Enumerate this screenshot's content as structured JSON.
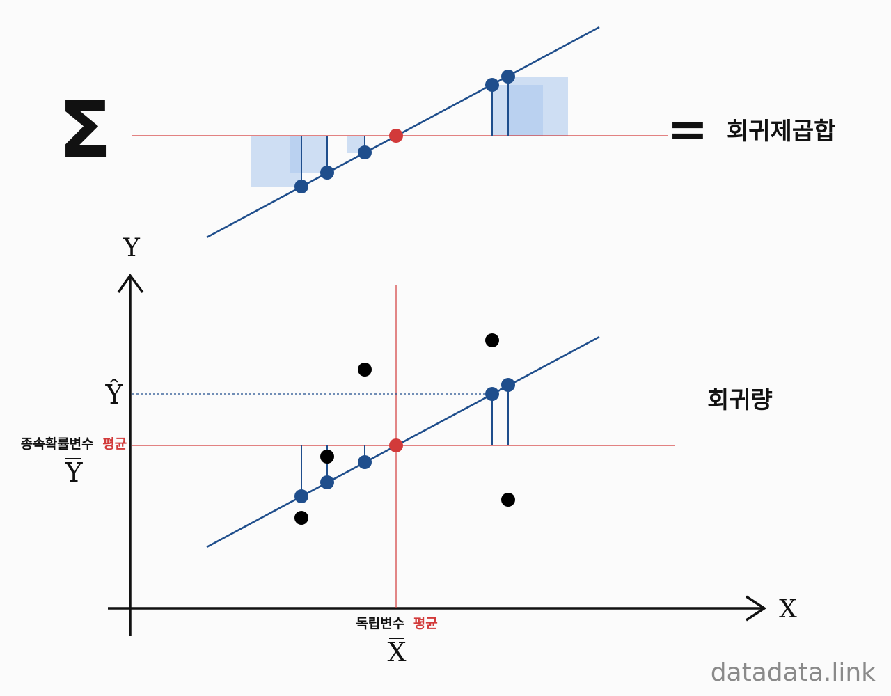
{
  "top": {
    "sigma": "Σ",
    "equals": "=",
    "result_label": "회귀제곱합"
  },
  "bottom": {
    "axis_y_label": "Y",
    "axis_x_label": "X",
    "y_hat_label": "Ŷ",
    "y_bar_caption": "종속확률변수",
    "y_bar_caption_accent": "평균",
    "y_bar_label": "Y",
    "x_bar_caption": "독립변수",
    "x_bar_caption_accent": "평균",
    "x_bar_label": "X",
    "result_label": "회귀량"
  },
  "watermark": "datadata.link",
  "colors": {
    "accent_red": "#d23a3a",
    "regression_blue": "#1f4e8c",
    "square_fill": "#a9c6ec",
    "axis": "#111111",
    "watermark": "#8a8a8a"
  }
}
